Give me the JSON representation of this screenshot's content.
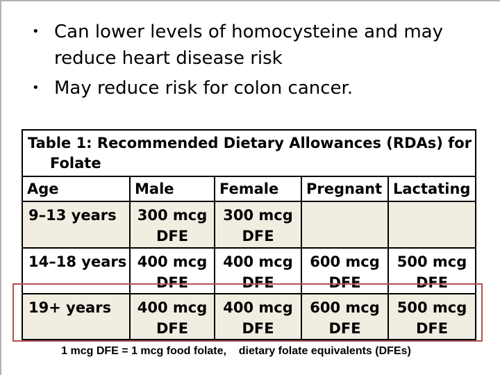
{
  "slide": {
    "bullet_glyph": "•",
    "bullets": [
      {
        "lines": [
          "Can lower levels of homocysteine and may",
          "reduce heart disease risk"
        ]
      },
      {
        "lines": [
          "May reduce risk for colon cancer."
        ]
      }
    ],
    "table": {
      "title_lines": [
        "Table 1: Recommended Dietary Allowances (RDAs) for",
        "Folate"
      ],
      "columns": [
        "Age",
        "Male",
        "Female",
        "Pregnant",
        "Lactating"
      ],
      "rows": [
        {
          "cells": [
            "9–13 years",
            "300 mcg DFE",
            "300 mcg DFE",
            "",
            ""
          ],
          "shaded": true,
          "highlighted": false
        },
        {
          "cells": [
            "14–18 years",
            "400 mcg DFE",
            "400 mcg DFE",
            "600 mcg DFE",
            "500 mcg DFE"
          ],
          "shaded": false,
          "highlighted": false
        },
        {
          "cells": [
            "19+ years",
            "400 mcg DFE",
            "400 mcg DFE",
            "600 mcg DFE",
            "500 mcg DFE"
          ],
          "shaded": true,
          "highlighted": true
        }
      ]
    },
    "footnote": "1 mcg DFE = 1 mcg food folate,    dietary folate equivalents (DFEs)",
    "colors": {
      "highlight_border": "#b05252",
      "row_shade": "#f2ede1",
      "table_border": "#000000"
    }
  }
}
